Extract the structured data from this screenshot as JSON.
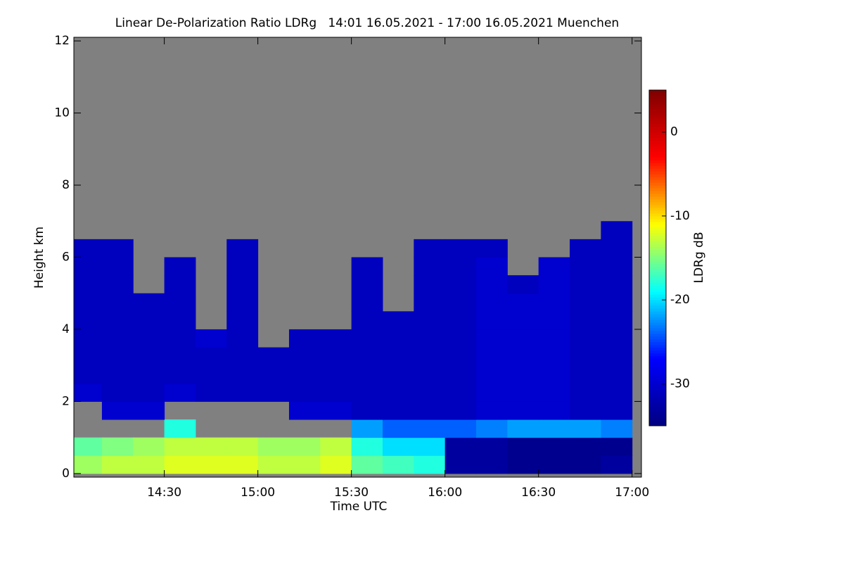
{
  "chart_data": {
    "type": "heatmap",
    "title": "Linear De-Polarization Ratio LDRg   14:01 16.05.2021 - 17:00 16.05.2021 Muenchen",
    "x_label": "Time UTC",
    "y_label": "Height km",
    "colorbar_label": "LDRg dB",
    "xbins": [
      840,
      850,
      860,
      870,
      880,
      890,
      900,
      910,
      920,
      930,
      940,
      950,
      960,
      970,
      980,
      990,
      1000,
      1010,
      1020
    ],
    "ybins": [
      0,
      0.5,
      1,
      1.5,
      2,
      2.5,
      3,
      3.5,
      4,
      4.5,
      5,
      5.5,
      6,
      6.5,
      7,
      7.5
    ],
    "z": [
      [
        -14,
        -13,
        -13,
        -12,
        -12,
        -12,
        -13,
        -13,
        -12,
        -16,
        -17,
        -18,
        -33,
        -33,
        -34,
        -34,
        -34,
        -33
      ],
      [
        -16,
        -15,
        -14,
        -13,
        -13,
        -13,
        -14,
        -14,
        -13,
        -18,
        -20,
        -20,
        -33,
        -33,
        -34,
        -34,
        -34,
        -34
      ],
      [
        null,
        null,
        null,
        -18,
        null,
        null,
        null,
        null,
        null,
        -22,
        -24,
        -24,
        -24,
        -23,
        -22,
        -22,
        -22,
        -23
      ],
      [
        null,
        -30,
        -30,
        null,
        null,
        null,
        null,
        -30,
        -30,
        -31,
        -31,
        -31,
        -31,
        -30,
        -30,
        -30,
        -31,
        -31
      ],
      [
        -30,
        -31,
        -31,
        -30,
        -31,
        -31,
        -31,
        -31,
        -31,
        -31,
        -31,
        -31,
        -31,
        -30,
        -30,
        -30,
        -31,
        -31
      ],
      [
        -31,
        -31,
        -31,
        -31,
        -31,
        -31,
        -31,
        -31,
        -31,
        -31,
        -31,
        -31,
        -31,
        -30,
        -30,
        -30,
        -31,
        -31
      ],
      [
        -31,
        -31,
        -31,
        -31,
        -31,
        -31,
        -31,
        -31,
        -31,
        -31,
        -31,
        -31,
        -31,
        -30,
        -30,
        -30,
        -31,
        -31
      ],
      [
        -31,
        -31,
        -31,
        -31,
        -30,
        -31,
        null,
        -31,
        -31,
        -31,
        -31,
        -31,
        -31,
        -30,
        -30,
        -30,
        -31,
        -31
      ],
      [
        -31,
        -31,
        -31,
        -31,
        null,
        -31,
        null,
        null,
        null,
        -31,
        -31,
        -31,
        -31,
        -30,
        -30,
        -30,
        -31,
        -31
      ],
      [
        -31,
        -31,
        -31,
        -31,
        null,
        -31,
        null,
        null,
        null,
        -31,
        null,
        -31,
        -31,
        -30,
        -30,
        -30,
        -31,
        -31
      ],
      [
        -31,
        -31,
        null,
        -31,
        null,
        -31,
        null,
        null,
        null,
        -31,
        null,
        -31,
        -31,
        -30,
        -31,
        -30,
        -31,
        -31
      ],
      [
        -31,
        -31,
        null,
        -31,
        null,
        -31,
        null,
        null,
        null,
        -31,
        null,
        -31,
        -31,
        -30,
        null,
        -30,
        -31,
        -31
      ],
      [
        -31,
        -31,
        null,
        null,
        null,
        -31,
        null,
        null,
        null,
        null,
        null,
        -31,
        -31,
        -31,
        null,
        null,
        -31,
        -31
      ],
      [
        null,
        null,
        null,
        null,
        null,
        null,
        null,
        null,
        null,
        null,
        null,
        null,
        null,
        null,
        null,
        null,
        null,
        -31
      ],
      [
        null,
        null,
        null,
        null,
        null,
        null,
        null,
        null,
        null,
        null,
        null,
        null,
        null,
        null,
        null,
        null,
        null,
        null
      ]
    ],
    "xlim": [
      841,
      1023
    ],
    "ylim": [
      -0.1,
      12.1
    ],
    "zlim": [
      -35,
      5
    ],
    "xticks": [
      {
        "value": 870,
        "label": "14:30"
      },
      {
        "value": 900,
        "label": "15:00"
      },
      {
        "value": 930,
        "label": "15:30"
      },
      {
        "value": 960,
        "label": "16:00"
      },
      {
        "value": 990,
        "label": "16:30"
      },
      {
        "value": 1020,
        "label": "17:00"
      }
    ],
    "yticks": [
      0,
      2,
      4,
      6,
      8,
      10,
      12
    ],
    "zticks": [
      0,
      -10,
      -20,
      -30
    ],
    "colorscale": [
      "#00007f",
      "#0000ff",
      "#00ffff",
      "#ffff00",
      "#ff0000",
      "#7f0000"
    ],
    "missing_color": "#808080"
  }
}
